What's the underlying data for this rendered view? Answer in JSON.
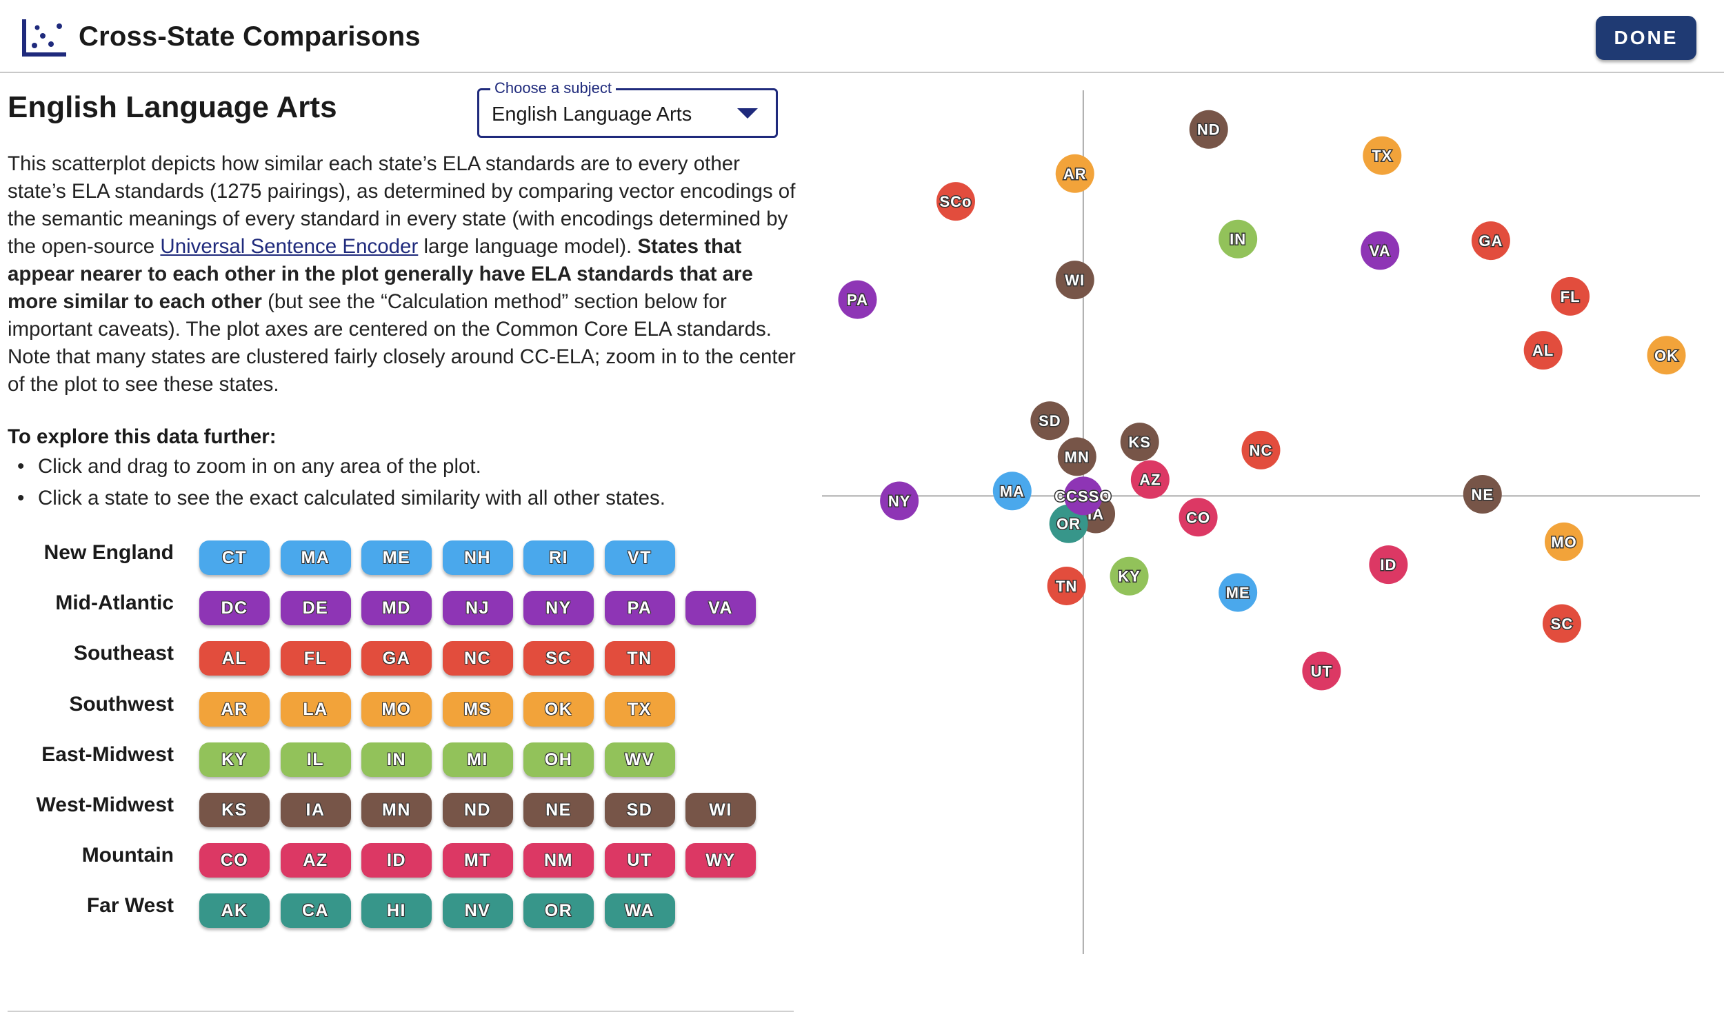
{
  "header": {
    "title": "Cross-State Comparisons",
    "logo_icon": "scatter-chart-icon",
    "done_label": "DONE"
  },
  "subject": {
    "heading": "English Language Arts",
    "select_legend": "Choose a subject",
    "select_value": "English Language Arts"
  },
  "description": {
    "part1": "This scatterplot depicts how similar each state’s ELA standards are to every other state’s ELA standards (1275 pairings), as determined by comparing vector encodings of the semantic meanings of every standard in every state (with encodings determined by the open-source ",
    "link": "Universal Sentence Encoder",
    "part2": " large language model). ",
    "bold": "States that appear nearer to each other in the plot generally have ELA standards that are more similar to each other",
    "part3": " (but see the “Calculation method” section below for important caveats). The plot axes are centered on the Common Core ELA standards. Note that many states are clustered fairly closely around CC-ELA; zoom in to the center of the plot to see these states."
  },
  "explore": {
    "heading": "To explore this data further:",
    "items": [
      "Click and drag to zoom in on any area of the plot.",
      "Click a state to see the exact calculated similarity with all other states."
    ]
  },
  "colors": {
    "New England": "#4aa8ec",
    "Mid-Atlantic": "#8e35b5",
    "Southeast": "#e24d3d",
    "Southwest": "#f2a33a",
    "East-Midwest": "#92c25a",
    "West-Midwest": "#775548",
    "Mountain": "#dc3864",
    "Far West": "#37968a"
  },
  "regions": [
    {
      "name": "New England",
      "states": [
        "CT",
        "MA",
        "ME",
        "NH",
        "RI",
        "VT"
      ]
    },
    {
      "name": "Mid-Atlantic",
      "states": [
        "DC",
        "DE",
        "MD",
        "NJ",
        "NY",
        "PA",
        "VA"
      ]
    },
    {
      "name": "Southeast",
      "states": [
        "AL",
        "FL",
        "GA",
        "NC",
        "SC",
        "TN"
      ]
    },
    {
      "name": "Southwest",
      "states": [
        "AR",
        "LA",
        "MO",
        "MS",
        "OK",
        "TX"
      ]
    },
    {
      "name": "East-Midwest",
      "states": [
        "KY",
        "IL",
        "IN",
        "MI",
        "OH",
        "WV"
      ]
    },
    {
      "name": "West-Midwest",
      "states": [
        "KS",
        "IA",
        "MN",
        "ND",
        "NE",
        "SD",
        "WI"
      ]
    },
    {
      "name": "Mountain",
      "states": [
        "CO",
        "AZ",
        "ID",
        "MT",
        "NM",
        "UT",
        "WY"
      ]
    },
    {
      "name": "Far West",
      "states": [
        "AK",
        "CA",
        "HI",
        "NV",
        "OR",
        "WA"
      ]
    }
  ],
  "chart_data": {
    "type": "scatter",
    "title": "",
    "xlabel": "",
    "ylabel": "",
    "xlim": [
      -1.25,
      2.95
    ],
    "ylim": [
      -2.8,
      2.5
    ],
    "grid": false,
    "axes_through_origin": true,
    "points": [
      {
        "label": "ND",
        "region": "West-Midwest",
        "x": 0.6,
        "y": 2.24
      },
      {
        "label": "TX",
        "region": "Southwest",
        "x": 1.43,
        "y": 2.08
      },
      {
        "label": "AR",
        "region": "Southwest",
        "x": -0.04,
        "y": 1.97
      },
      {
        "label": "SCo",
        "region": "Southeast",
        "x": -0.61,
        "y": 1.8
      },
      {
        "label": "IN",
        "region": "East-Midwest",
        "x": 0.74,
        "y": 1.57
      },
      {
        "label": "VA",
        "region": "Mid-Atlantic",
        "x": 1.42,
        "y": 1.5
      },
      {
        "label": "GA",
        "region": "Southeast",
        "x": 1.95,
        "y": 1.56
      },
      {
        "label": "FL",
        "region": "Southeast",
        "x": 2.33,
        "y": 1.22
      },
      {
        "label": "WI",
        "region": "West-Midwest",
        "x": -0.04,
        "y": 1.32
      },
      {
        "label": "PA",
        "region": "Mid-Atlantic",
        "x": -1.08,
        "y": 1.2
      },
      {
        "label": "AL",
        "region": "Southeast",
        "x": 2.2,
        "y": 0.89
      },
      {
        "label": "OK",
        "region": "Southwest",
        "x": 2.79,
        "y": 0.86
      },
      {
        "label": "SD",
        "region": "West-Midwest",
        "x": -0.16,
        "y": 0.46
      },
      {
        "label": "NC",
        "region": "Southeast",
        "x": 0.85,
        "y": 0.28
      },
      {
        "label": "KS",
        "region": "West-Midwest",
        "x": 0.27,
        "y": 0.33
      },
      {
        "label": "MN",
        "region": "West-Midwest",
        "x": -0.03,
        "y": 0.24
      },
      {
        "label": "AZ",
        "region": "Mountain",
        "x": 0.32,
        "y": 0.1
      },
      {
        "label": "NE",
        "region": "West-Midwest",
        "x": 1.91,
        "y": 0.01
      },
      {
        "label": "MA",
        "region": "New England",
        "x": -0.34,
        "y": 0.03
      },
      {
        "label": "NY",
        "region": "Mid-Atlantic",
        "x": -0.88,
        "y": -0.03
      },
      {
        "label": "CCSSO",
        "region": "Mid-Atlantic",
        "x": 0.0,
        "y": 0.0
      },
      {
        "label": "IA",
        "region": "West-Midwest",
        "x": 0.06,
        "y": -0.11
      },
      {
        "label": "CO",
        "region": "Mountain",
        "x": 0.55,
        "y": -0.13
      },
      {
        "label": "OR",
        "region": "Far West",
        "x": -0.07,
        "y": -0.17
      },
      {
        "label": "MO",
        "region": "Southwest",
        "x": 2.3,
        "y": -0.28
      },
      {
        "label": "ID",
        "region": "Mountain",
        "x": 1.46,
        "y": -0.42
      },
      {
        "label": "KY",
        "region": "East-Midwest",
        "x": 0.22,
        "y": -0.49
      },
      {
        "label": "TN",
        "region": "Southeast",
        "x": -0.08,
        "y": -0.55
      },
      {
        "label": "ME",
        "region": "New England",
        "x": 0.74,
        "y": -0.59
      },
      {
        "label": "SC",
        "region": "Southeast",
        "x": 2.29,
        "y": -0.78
      },
      {
        "label": "UT",
        "region": "Mountain",
        "x": 1.14,
        "y": -1.07
      }
    ]
  }
}
